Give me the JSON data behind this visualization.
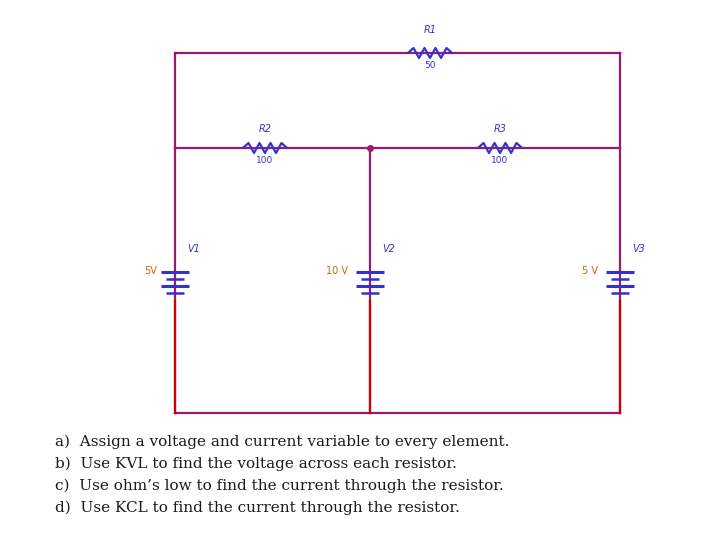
{
  "circuit_color": "#9b1a6e",
  "resistor_color": "#3333cc",
  "label_color": "#3333cc",
  "value_color": "#cc6600",
  "bg_color": "#ffffff",
  "text_color": "#1a1a1a",
  "questions": [
    "a)  Assign a voltage and current variable to every element.",
    "b)  Use KVL to find the voltage across each resistor.",
    "c)  Use ohm’s low to find the current through the resistor.",
    "d)  Use KCL to find the current through the resistor."
  ]
}
